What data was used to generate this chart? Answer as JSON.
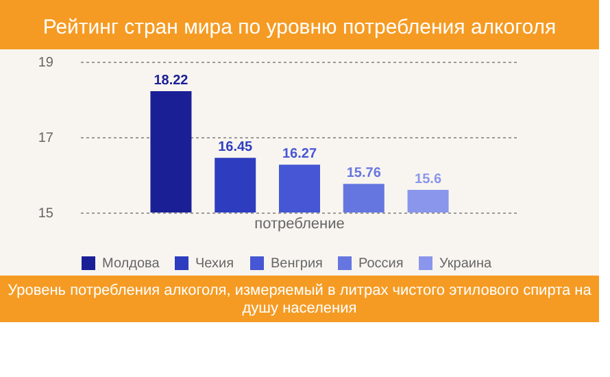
{
  "chart_data": {
    "type": "bar",
    "title": "Рейтинг стран мира по уровню потребления алкоголя",
    "categories": [
      "потребление"
    ],
    "series": [
      {
        "name": "Молдова",
        "color": "#1b1f96",
        "values": [
          18.22
        ]
      },
      {
        "name": "Чехия",
        "color": "#2e3cbf",
        "values": [
          16.45
        ]
      },
      {
        "name": "Венгрия",
        "color": "#4656d4",
        "values": [
          16.27
        ]
      },
      {
        "name": "Россия",
        "color": "#6676e0",
        "values": [
          15.76
        ]
      },
      {
        "name": "Украина",
        "color": "#8a96ec",
        "values": [
          15.6
        ]
      }
    ],
    "ylim": [
      15,
      19
    ],
    "yticks": [
      15,
      17,
      19
    ],
    "grid": "y",
    "legend": "bottom",
    "data_labels": true,
    "annotations": [
      "Уровень потребления алкоголя, измеряемый в литрах чистого этилового спирта на душу населения"
    ]
  }
}
